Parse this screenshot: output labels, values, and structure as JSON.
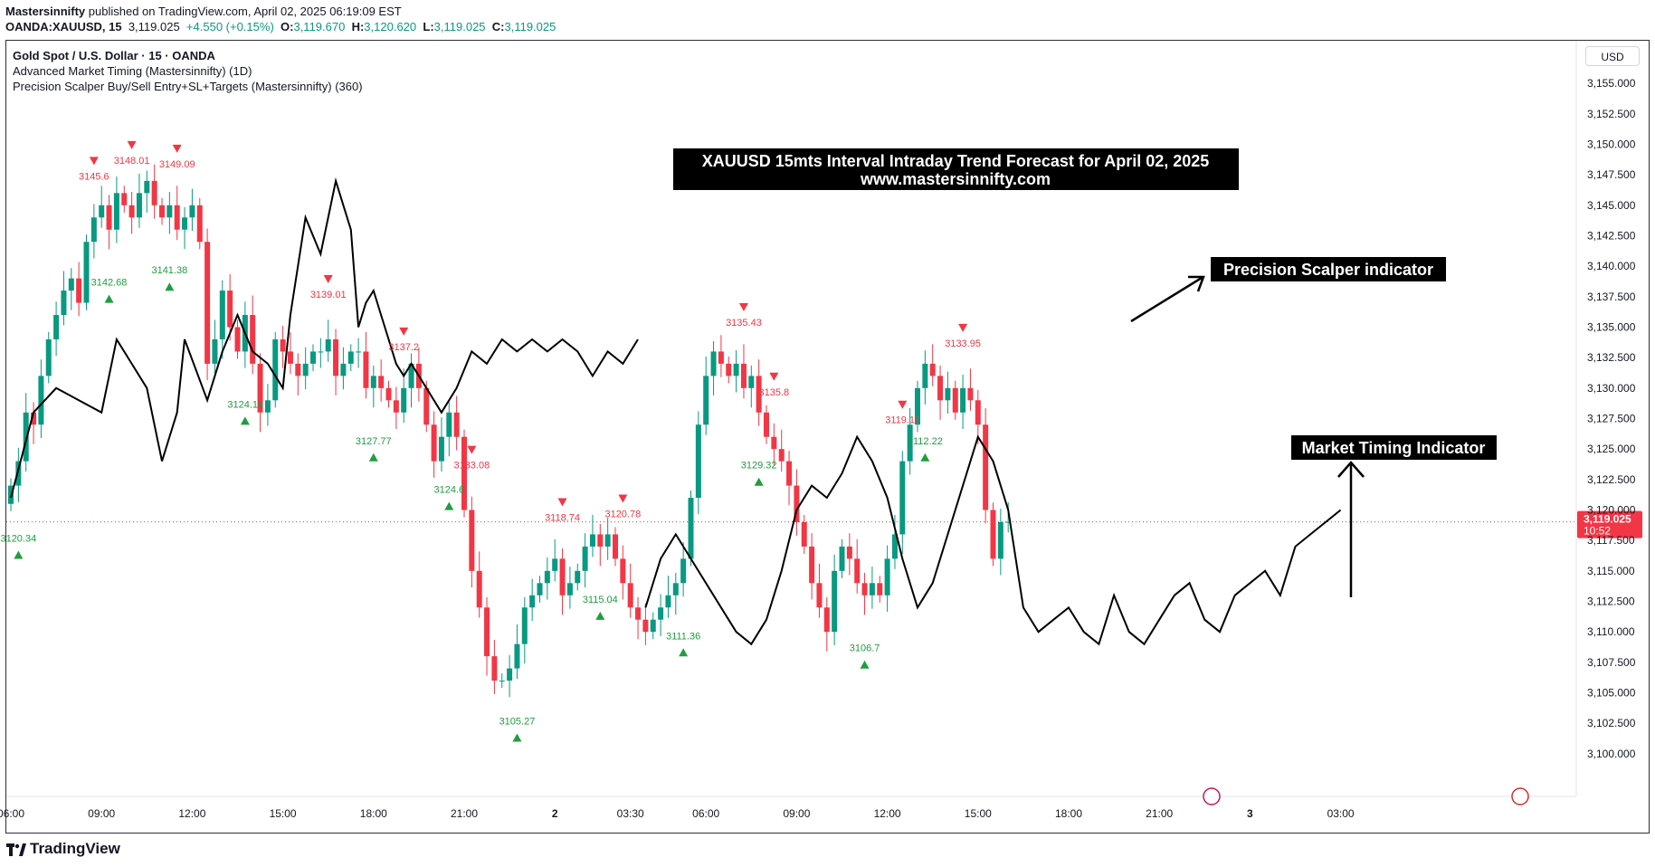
{
  "header": {
    "publisher": "Mastersinnifty",
    "published_text": "published on TradingView.com, April 02, 2025 06:19:09 EST",
    "symbol": "OANDA:XAUUSD, 15",
    "last": "3,119.025",
    "change": "+4.550 (+0.15%)",
    "o_label": "O:",
    "o_val": "3,119.670",
    "h_label": "H:",
    "h_val": "3,120.620",
    "l_label": "L:",
    "l_val": "3,119.025",
    "c_label": "C:",
    "c_val": "3,119.025"
  },
  "legend": {
    "title": "Gold Spot / U.S. Dollar · 15 · OANDA",
    "indicator1": "Advanced Market Timing (Mastersinnifty) (1D)",
    "indicator2": "Precision Scalper Buy/Sell Entry+SL+Targets (Mastersinnifty) (360)"
  },
  "currency": "USD",
  "footer": {
    "brand": "TradingView"
  },
  "colors": {
    "up": "#089981",
    "down": "#f23645",
    "line": "#000000",
    "buy_label": "#1e9e3f",
    "sell_label": "#f23645"
  },
  "chart_data": {
    "type": "candlestick",
    "title": "XAUUSD 15mts Interval Intraday Trend Forecast for April 02, 2025",
    "subtitle": "www.mastersinnifty.com",
    "ylim": [
      3096.5,
      3158.5
    ],
    "y_ticks": [
      3100,
      3102.5,
      3105,
      3107.5,
      3110,
      3112.5,
      3115,
      3117.5,
      3120,
      3122.5,
      3125,
      3127.5,
      3130,
      3132.5,
      3135,
      3137.5,
      3140,
      3142.5,
      3145,
      3147.5,
      3150,
      3152.5,
      3155
    ],
    "y_tick_labels": [
      "3,100.000",
      "3,102.500",
      "3,105.000",
      "3,107.500",
      "3,110.000",
      "3,112.500",
      "3,115.000",
      "3,117.500",
      "3,120.000",
      "3,122.500",
      "3,125.000",
      "3,127.500",
      "3,130.000",
      "3,132.500",
      "3,135.000",
      "3,137.500",
      "3,140.000",
      "3,142.500",
      "3,145.000",
      "3,147.500",
      "3,150.000",
      "3,152.500",
      "3,155.000"
    ],
    "x_ticks": [
      {
        "label": "06:00",
        "bar": 0
      },
      {
        "label": "09:00",
        "bar": 12
      },
      {
        "label": "12:00",
        "bar": 24
      },
      {
        "label": "15:00",
        "bar": 36
      },
      {
        "label": "18:00",
        "bar": 48
      },
      {
        "label": "21:00",
        "bar": 60
      },
      {
        "label": "2",
        "bar": 72
      },
      {
        "label": "03:30",
        "bar": 82
      },
      {
        "label": "06:00",
        "bar": 92
      },
      {
        "label": "09:00",
        "bar": 104
      },
      {
        "label": "12:00",
        "bar": 116
      },
      {
        "label": "15:00",
        "bar": 128
      },
      {
        "label": "18:00",
        "bar": 140
      },
      {
        "label": "21:00",
        "bar": 152
      },
      {
        "label": "3",
        "bar": 164
      },
      {
        "label": "03:00",
        "bar": 176
      }
    ],
    "price_label": {
      "value": 3119.025,
      "text": "3,119.025",
      "timer": "10:52"
    },
    "closes": [
      3122,
      3124,
      3128,
      3127,
      3131,
      3134,
      3136,
      3138,
      3139,
      3137,
      3142,
      3144,
      3145,
      3143,
      3146,
      3145,
      3144,
      3146,
      3147,
      3145,
      3144,
      3145,
      3143,
      3144,
      3145,
      3142,
      3132,
      3134,
      3138,
      3135,
      3133,
      3136,
      3132,
      3128,
      3129,
      3134,
      3133,
      3132,
      3131,
      3132,
      3133,
      3133,
      3134,
      3131,
      3132,
      3133,
      3133,
      3130,
      3131,
      3130,
      3129,
      3128,
      3130,
      3132,
      3130,
      3127,
      3124,
      3126,
      3128,
      3126,
      3120,
      3115,
      3112,
      3108,
      3106,
      3106,
      3107,
      3109,
      3112,
      3113,
      3114,
      3115,
      3116,
      3113,
      3114,
      3115,
      3117,
      3118,
      3117,
      3118,
      3116,
      3114,
      3112,
      3111,
      3110,
      3111,
      3112,
      3113,
      3114,
      3116,
      3121,
      3127,
      3131,
      3133,
      3132,
      3131,
      3132,
      3130,
      3131,
      3128,
      3126,
      3125,
      3124,
      3122,
      3119,
      3117,
      3114,
      3112,
      3110,
      3115,
      3117,
      3116,
      3114,
      3113,
      3114,
      3113,
      3116,
      3118,
      3124,
      3127,
      3130,
      3132,
      3131,
      3129,
      3130,
      3128,
      3130,
      3129,
      3127,
      3120,
      3116,
      3119,
      3119.025
    ],
    "bar_offset": 0,
    "bar_spacing": 8.35,
    "bar_x0": 12,
    "market_timing_line": {
      "x_bars": [
        0,
        3,
        6,
        9,
        12,
        14,
        16,
        18,
        20,
        22,
        23,
        26,
        28,
        30,
        32,
        34,
        36,
        37,
        39,
        41,
        43,
        45,
        46,
        47,
        48,
        49,
        50,
        51,
        52,
        53,
        55,
        57,
        59,
        61,
        63,
        65,
        67,
        69,
        71,
        73,
        75,
        77,
        79,
        81,
        83
      ],
      "values": [
        3121,
        3128,
        3130,
        3129,
        3128,
        3134,
        3132,
        3130,
        3124,
        3128,
        3134,
        3129,
        3133,
        3136,
        3133,
        3132,
        3130,
        3136,
        3144,
        3141,
        3147,
        3143,
        3135,
        3137,
        3138,
        3136,
        3134,
        3132,
        3131,
        3132,
        3130,
        3128,
        3130,
        3133,
        3132,
        3134,
        3133,
        3134,
        3133,
        3134,
        3133,
        3131,
        3133,
        3132,
        3134
      ]
    },
    "market_timing_line_day2": {
      "x_bars": [
        84,
        86,
        88,
        90,
        92,
        94,
        96,
        98,
        100,
        102,
        104,
        106,
        108,
        110,
        112,
        114,
        116,
        118,
        120,
        122,
        124,
        126,
        128,
        130,
        132,
        134,
        136,
        138,
        140,
        142,
        144,
        146,
        148,
        150,
        152,
        154,
        156,
        158,
        160,
        162,
        164,
        166,
        168,
        170,
        172,
        174,
        176
      ],
      "values": [
        3112,
        3116,
        3118,
        3116,
        3114,
        3112,
        3110,
        3109,
        3111,
        3115,
        3120,
        3122,
        3121,
        3123,
        3126,
        3124,
        3121,
        3116,
        3112,
        3114,
        3118,
        3122,
        3126,
        3124,
        3120,
        3112,
        3110,
        3111,
        3112,
        3110,
        3109,
        3113,
        3110,
        3109,
        3111,
        3113,
        3114,
        3111,
        3110,
        3113,
        3114,
        3115,
        3113,
        3117,
        3118,
        3119,
        3120
      ]
    },
    "sell_signals": [
      {
        "bar": 11,
        "label": "3145.6"
      },
      {
        "bar": 16,
        "label": "3148.01"
      },
      {
        "bar": 22,
        "label": "3149.09"
      },
      {
        "bar": 42,
        "label": "3139.01"
      },
      {
        "bar": 52,
        "label": "3137.2"
      },
      {
        "bar": 61,
        "label": "3133.08"
      },
      {
        "bar": 73,
        "label": "3118.74"
      },
      {
        "bar": 81,
        "label": "3120.78"
      },
      {
        "bar": 97,
        "label": "3135.43"
      },
      {
        "bar": 101,
        "label": "3135.8"
      },
      {
        "bar": 118,
        "label": "3119.11"
      },
      {
        "bar": 126,
        "label": "3133.95"
      }
    ],
    "buy_signals": [
      {
        "bar": 1,
        "label": "3120.34"
      },
      {
        "bar": 13,
        "label": "3142.68"
      },
      {
        "bar": 21,
        "label": "3141.38"
      },
      {
        "bar": 31,
        "label": "3124.11"
      },
      {
        "bar": 48,
        "label": "3127.77"
      },
      {
        "bar": 58,
        "label": "3124.6"
      },
      {
        "bar": 67,
        "label": "3105.27"
      },
      {
        "bar": 78,
        "label": "3115.04"
      },
      {
        "bar": 89,
        "label": "3111.36"
      },
      {
        "bar": 99,
        "label": "3129.32"
      },
      {
        "bar": 113,
        "label": "3106.7"
      },
      {
        "bar": 121,
        "label": "3112.22"
      }
    ],
    "annotations": [
      {
        "text": "Precision Scalper indicator"
      },
      {
        "text": "Market Timing Indicator"
      }
    ]
  }
}
